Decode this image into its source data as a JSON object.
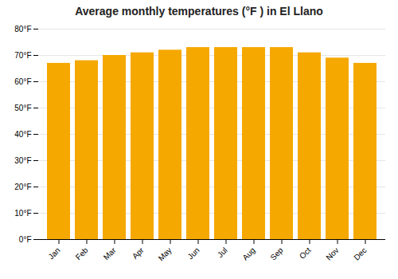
{
  "chart_data": {
    "type": "bar",
    "title": "Average monthly temperatures (°F ) in El Llano",
    "categories": [
      "Jan",
      "Feb",
      "Mar",
      "Apr",
      "May",
      "Jun",
      "Jul",
      "Aug",
      "Sep",
      "Oct",
      "Nov",
      "Dec"
    ],
    "values": [
      67,
      68,
      70,
      71,
      72,
      73,
      73,
      73,
      73,
      71,
      69,
      67
    ],
    "color": "#F5A800",
    "ylim": [
      0,
      80
    ],
    "yticks": [
      {
        "value": 0,
        "label": "0°F"
      },
      {
        "value": 10,
        "label": "10°F"
      },
      {
        "value": 20,
        "label": "20°F"
      },
      {
        "value": 30,
        "label": "30°F"
      },
      {
        "value": 40,
        "label": "40°F"
      },
      {
        "value": 50,
        "label": "50°F"
      },
      {
        "value": 60,
        "label": "60°F"
      },
      {
        "value": 70,
        "label": "70°F"
      },
      {
        "value": 80,
        "label": "80°F"
      }
    ],
    "grid": true
  }
}
